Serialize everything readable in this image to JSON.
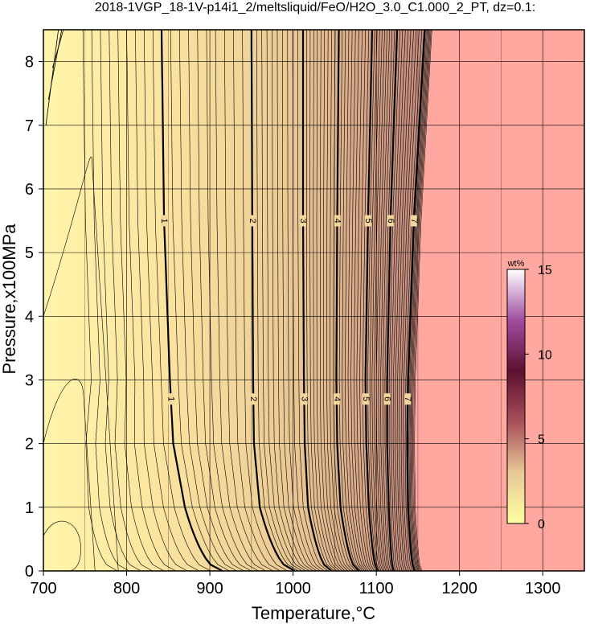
{
  "chart_data": {
    "type": "heatmap",
    "title": "2018-1VGP_18-1V-p14i1_2/meltsliquid/FeO/H2O_3.0_C1.000_2_PT, dz=0.1:",
    "xlabel": "Temperature,°C",
    "ylabel": "Pressure,x100MPa",
    "xlim": [
      700,
      1350
    ],
    "ylim": [
      0,
      8.5
    ],
    "x_ticks": [
      "700",
      "800",
      "900",
      "1000",
      "1100",
      "1200",
      "1300"
    ],
    "y_ticks": [
      "0",
      "1",
      "2",
      "3",
      "4",
      "5",
      "6",
      "7",
      "8"
    ],
    "grid": true,
    "colorbar": {
      "title": "wt%",
      "range": [
        0,
        15
      ],
      "ticks": [
        "0",
        "5",
        "10",
        "15"
      ],
      "placement": "right, inside plot"
    },
    "contour_interval": 0.1,
    "labeled_contours": [
      {
        "level": "1",
        "T_at_P0": 915,
        "T_at_P1": 870,
        "T_at_P2": 856,
        "T_at_P3": 852,
        "T_at_P5_5": 845,
        "T_at_P8_5": 842
      },
      {
        "level": "2",
        "T_at_P0": 1002,
        "T_at_P1": 960,
        "T_at_P2": 953,
        "T_at_P3": 952,
        "T_at_P5_5": 951,
        "T_at_P8_5": 950
      },
      {
        "level": "3",
        "T_at_P0": 1046,
        "T_at_P1": 1018,
        "T_at_P2": 1014,
        "T_at_P3": 1013,
        "T_at_P5_5": 1012,
        "T_at_P8_5": 1012
      },
      {
        "level": "4",
        "T_at_P0": 1079,
        "T_at_P1": 1057,
        "T_at_P2": 1053,
        "T_at_P3": 1052,
        "T_at_P5_5": 1053,
        "T_at_P8_5": 1055
      },
      {
        "level": "5",
        "T_at_P0": 1102,
        "T_at_P1": 1091,
        "T_at_P2": 1088,
        "T_at_P3": 1087,
        "T_at_P5_5": 1090,
        "T_at_P8_5": 1095
      },
      {
        "level": "6",
        "T_at_P0": 1121,
        "T_at_P1": 1115,
        "T_at_P2": 1113,
        "T_at_P3": 1113,
        "T_at_P5_5": 1117,
        "T_at_P8_5": 1125
      },
      {
        "level": "7",
        "T_at_P0": 1146,
        "T_at_P1": 1138,
        "T_at_P2": 1137,
        "T_at_P3": 1138,
        "T_at_P5_5": 1145,
        "T_at_P8_5": 1158
      }
    ],
    "no_melt_region": "T above ~1150-1160 °C (liquidus), shown in salmon"
  },
  "colors": {
    "low": "#fff3a8",
    "mid": "#e3b98a",
    "high": "#c99282",
    "above_liquidus": "#ffa8a0",
    "colorbar_stops": [
      "#ffffa0",
      "#e8c896",
      "#a84f5a",
      "#5c1030",
      "#a04da0",
      "#ffffff"
    ]
  }
}
